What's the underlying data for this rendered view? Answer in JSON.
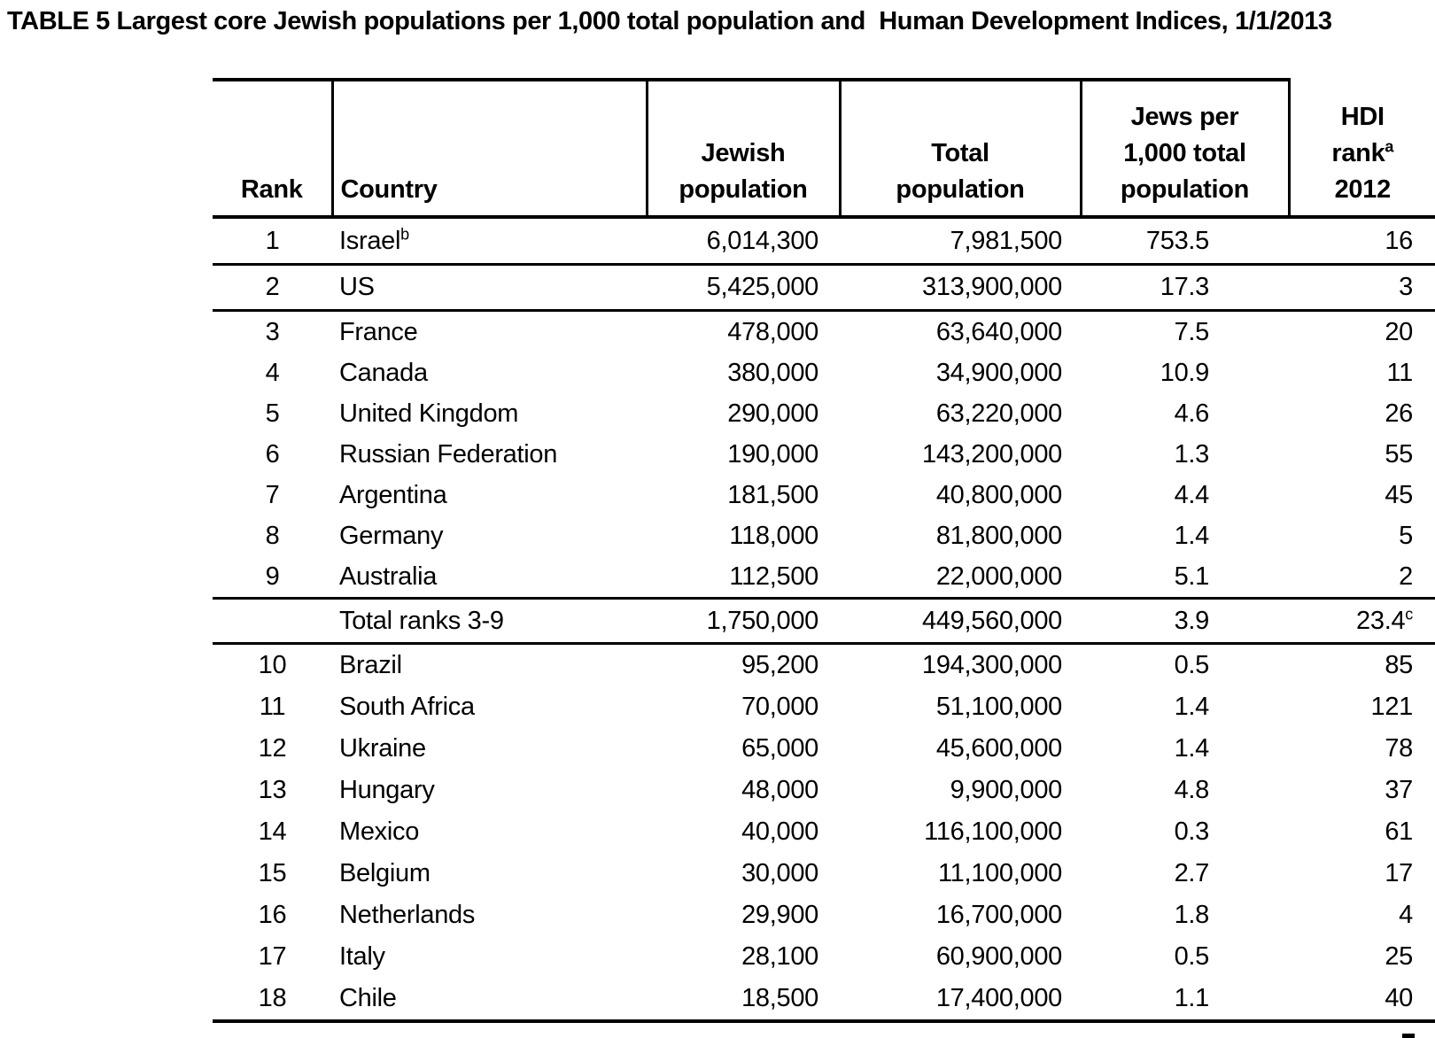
{
  "title": "TABLE 5 Largest core Jewish populations per 1,000 total population and  Human Development Indices, 1/1/2013",
  "table": {
    "header": {
      "rank": "Rank",
      "country": "Country",
      "jewish_population_lines": [
        "Jewish",
        "population"
      ],
      "total_population_lines": [
        "Total",
        "population"
      ],
      "jews_per_1000_lines": [
        "Jews per",
        "1,000 total",
        "population"
      ],
      "hdi_lines": [
        "HDI",
        "rank",
        "2012"
      ],
      "hdi_sup": "a"
    },
    "rows": [
      {
        "rank": "1",
        "country": "Israel",
        "country_sup": "b",
        "jewish_population": "6,014,300",
        "total_population": "7,981,500",
        "jews_per_1000": "753.5",
        "hdi_rank": "16"
      },
      {
        "rank": "2",
        "country": "US",
        "jewish_population": "5,425,000",
        "total_population": "313,900,000",
        "jews_per_1000": "17.3",
        "hdi_rank": "3"
      },
      {
        "rank": "3",
        "country": "France",
        "jewish_population": "478,000",
        "total_population": "63,640,000",
        "jews_per_1000": "7.5",
        "hdi_rank": "20"
      },
      {
        "rank": "4",
        "country": "Canada",
        "jewish_population": "380,000",
        "total_population": "34,900,000",
        "jews_per_1000": "10.9",
        "hdi_rank": "11"
      },
      {
        "rank": "5",
        "country": "United Kingdom",
        "jewish_population": "290,000",
        "total_population": "63,220,000",
        "jews_per_1000": "4.6",
        "hdi_rank": "26"
      },
      {
        "rank": "6",
        "country": "Russian Federation",
        "jewish_population": "190,000",
        "total_population": "143,200,000",
        "jews_per_1000": "1.3",
        "hdi_rank": "55"
      },
      {
        "rank": "7",
        "country": "Argentina",
        "jewish_population": "181,500",
        "total_population": "40,800,000",
        "jews_per_1000": "4.4",
        "hdi_rank": "45"
      },
      {
        "rank": "8",
        "country": "Germany",
        "jewish_population": "118,000",
        "total_population": "81,800,000",
        "jews_per_1000": "1.4",
        "hdi_rank": "5"
      },
      {
        "rank": "9",
        "country": "Australia",
        "jewish_population": "112,500",
        "total_population": "22,000,000",
        "jews_per_1000": "5.1",
        "hdi_rank": "2"
      },
      {
        "rank": "",
        "country": "Total ranks 3-9",
        "jewish_population": "1,750,000",
        "total_population": "449,560,000",
        "jews_per_1000": "3.9",
        "hdi_rank": "23.4",
        "hdi_rank_sup": "c"
      },
      {
        "rank": "10",
        "country": "Brazil",
        "jewish_population": "95,200",
        "total_population": "194,300,000",
        "jews_per_1000": "0.5",
        "hdi_rank": "85"
      },
      {
        "rank": "11",
        "country": "South Africa",
        "jewish_population": "70,000",
        "total_population": "51,100,000",
        "jews_per_1000": "1.4",
        "hdi_rank": "121"
      },
      {
        "rank": "12",
        "country": "Ukraine",
        "jewish_population": "65,000",
        "total_population": "45,600,000",
        "jews_per_1000": "1.4",
        "hdi_rank": "78"
      },
      {
        "rank": "13",
        "country": "Hungary",
        "jewish_population": "48,000",
        "total_population": "9,900,000",
        "jews_per_1000": "4.8",
        "hdi_rank": "37"
      },
      {
        "rank": "14",
        "country": "Mexico",
        "jewish_population": "40,000",
        "total_population": "116,100,000",
        "jews_per_1000": "0.3",
        "hdi_rank": "61"
      },
      {
        "rank": "15",
        "country": "Belgium",
        "jewish_population": "30,000",
        "total_population": "11,100,000",
        "jews_per_1000": "2.7",
        "hdi_rank": "17"
      },
      {
        "rank": "16",
        "country": "Netherlands",
        "jewish_population": "29,900",
        "total_population": "16,700,000",
        "jews_per_1000": "1.8",
        "hdi_rank": "4"
      },
      {
        "rank": "17",
        "country": "Italy",
        "jewish_population": "28,100",
        "total_population": "60,900,000",
        "jews_per_1000": "0.5",
        "hdi_rank": "25"
      },
      {
        "rank": "18",
        "country": "Chile",
        "jewish_population": "18,500",
        "total_population": "17,400,000",
        "jews_per_1000": "1.1",
        "hdi_rank": "40"
      }
    ]
  }
}
